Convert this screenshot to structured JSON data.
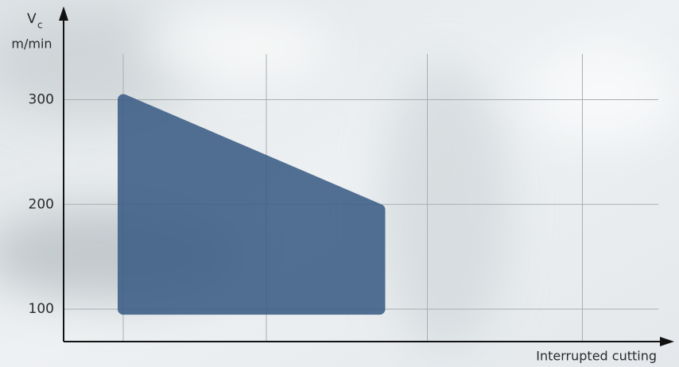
{
  "chart_data": {
    "type": "area",
    "y_label": "V",
    "y_label_sub": "c",
    "y_unit": "m/min",
    "x_label": "Interrupted cutting",
    "x": [
      10,
      53,
      53,
      10
    ],
    "values": [
      300,
      195,
      100,
      100
    ],
    "color": "#3b5d84",
    "xlim": [
      0,
      100
    ],
    "xticks": [
      10,
      34,
      61,
      87
    ],
    "ylim": [
      69,
      380
    ],
    "yticks": [
      100,
      200,
      300
    ],
    "grid": true
  }
}
